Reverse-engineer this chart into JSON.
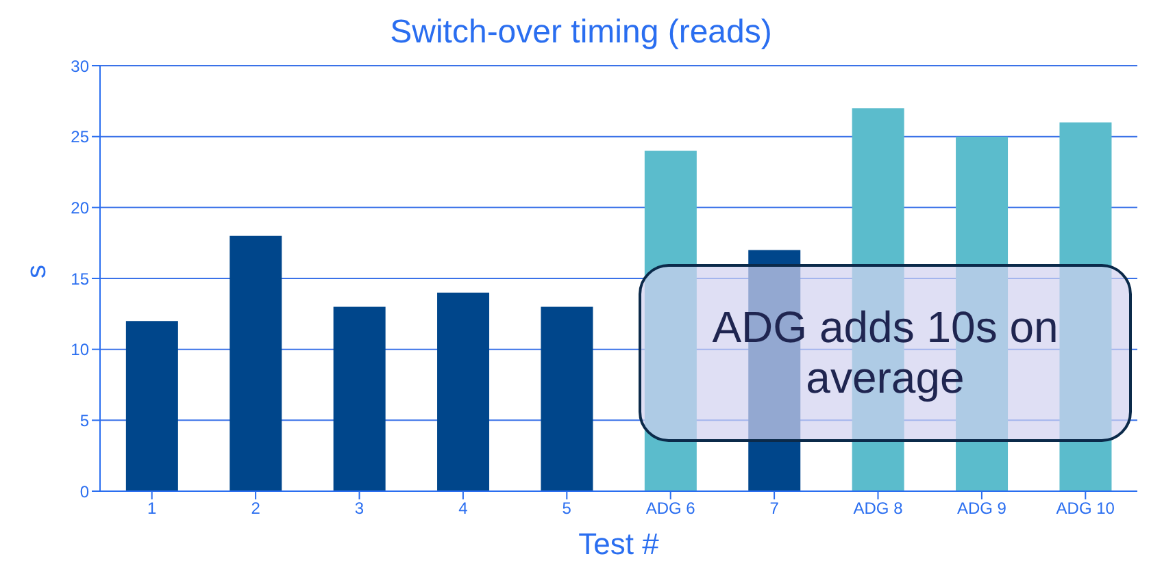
{
  "chart_data": {
    "type": "bar",
    "title": "Switch-over timing (reads)",
    "xlabel": "Test #",
    "ylabel": "s",
    "categories": [
      "1",
      "2",
      "3",
      "4",
      "5",
      "ADG 6",
      "7",
      "ADG 8",
      "ADG 9",
      "ADG 10"
    ],
    "values": [
      12,
      18,
      13,
      14,
      13,
      24,
      17,
      27,
      25,
      26
    ],
    "colors": [
      "#00468b",
      "#00468b",
      "#00468b",
      "#00468b",
      "#00468b",
      "#5bbccc",
      "#00468b",
      "#5bbccc",
      "#5bbccc",
      "#5bbccc"
    ],
    "ylim": [
      0,
      30
    ],
    "yticks": [
      0,
      5,
      10,
      15,
      20,
      25,
      30
    ],
    "grid": "y",
    "annotations": [
      "ADG adds 10s on average"
    ]
  }
}
